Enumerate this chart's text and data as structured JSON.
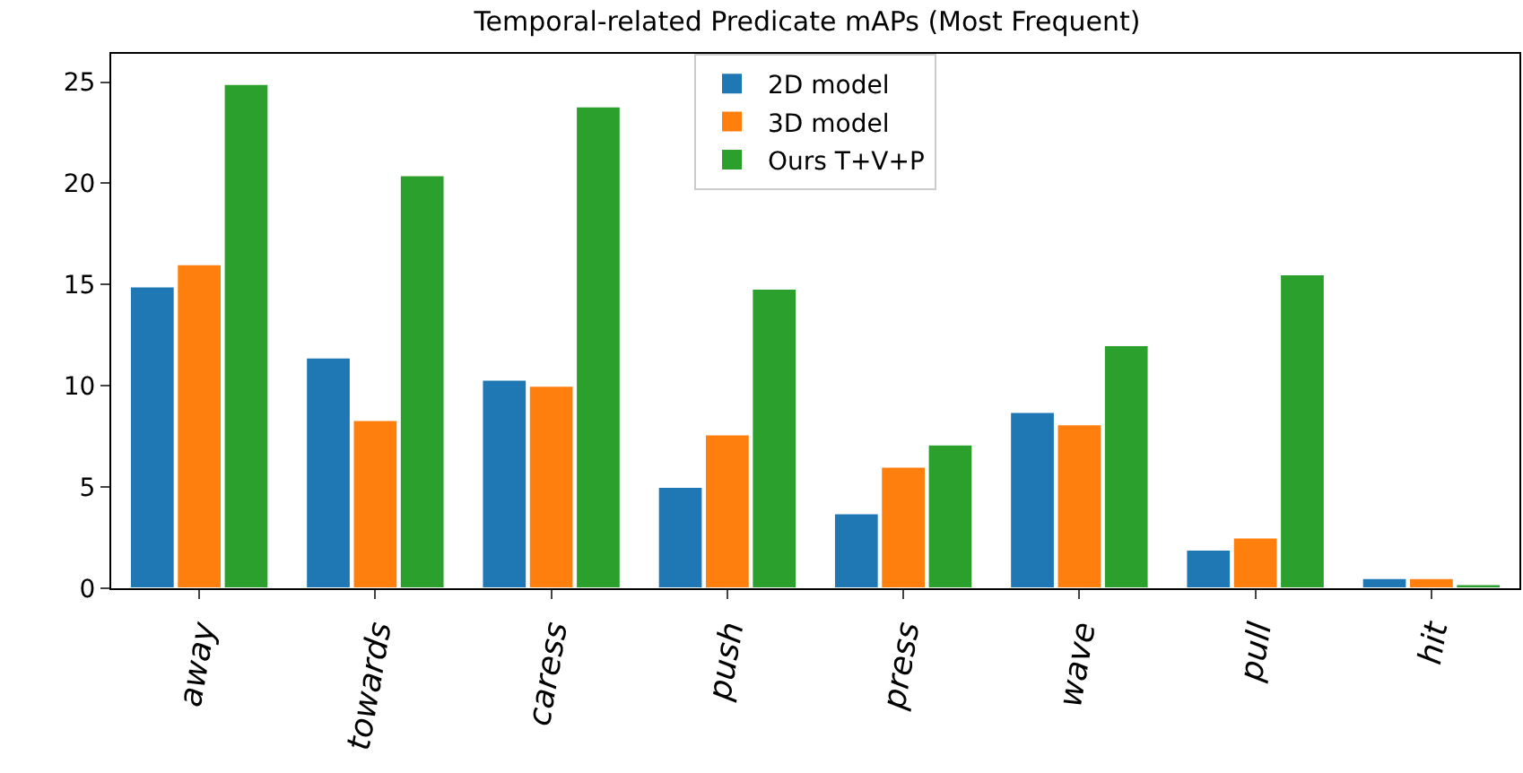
{
  "chart_data": {
    "type": "bar",
    "title": "Temporal-related Predicate mAPs (Most Frequent)",
    "categories": [
      "away",
      "towards",
      "caress",
      "push",
      "press",
      "wave",
      "pull",
      "hit"
    ],
    "series": [
      {
        "name": "2D model",
        "color": "#1f77b4",
        "values": [
          14.9,
          11.4,
          10.3,
          5.0,
          3.7,
          8.7,
          1.9,
          0.5
        ]
      },
      {
        "name": "3D model",
        "color": "#ff7f0e",
        "values": [
          16.0,
          8.3,
          10.0,
          7.6,
          6.0,
          8.1,
          2.5,
          0.5
        ]
      },
      {
        "name": "Ours T+V+P",
        "color": "#2ca02c",
        "values": [
          24.9,
          20.4,
          23.8,
          14.8,
          7.1,
          12.0,
          15.5,
          0.2
        ]
      }
    ],
    "ylim": [
      0,
      26.4
    ],
    "yticks": [
      0,
      5,
      10,
      15,
      20,
      25
    ],
    "grid": false,
    "legend": "top"
  }
}
